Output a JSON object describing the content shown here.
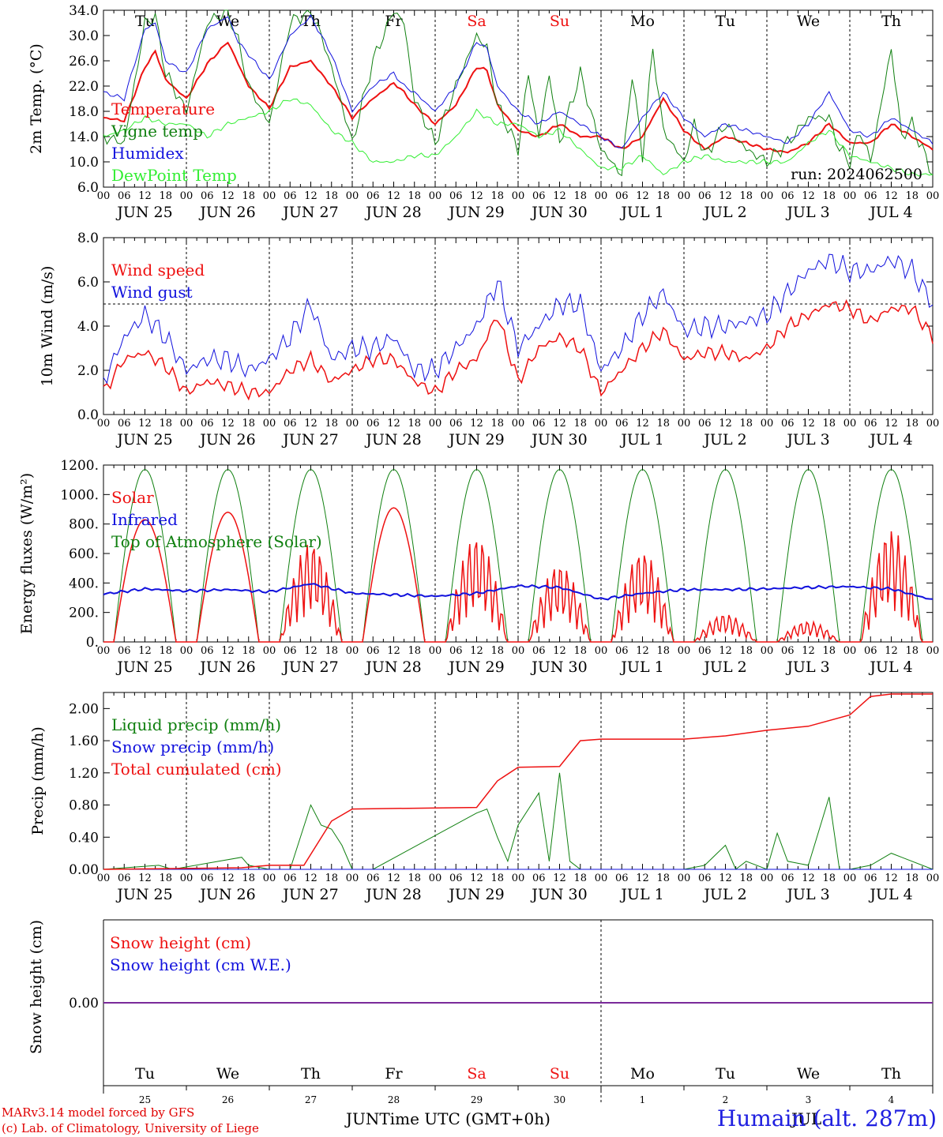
{
  "run_label": "run: 2024062500",
  "days": [
    {
      "label": "Tu",
      "color": "#000000",
      "month_day": "JUN 25",
      "num": "25"
    },
    {
      "label": "We",
      "color": "#000000",
      "month_day": "JUN 26",
      "num": "26"
    },
    {
      "label": "Th",
      "color": "#000000",
      "month_day": "JUN 27",
      "num": "27"
    },
    {
      "label": "Fr",
      "color": "#000000",
      "month_day": "JUN 28",
      "num": "28"
    },
    {
      "label": "Sa",
      "color": "#ee1111",
      "month_day": "JUN 29",
      "num": "29"
    },
    {
      "label": "Su",
      "color": "#ee1111",
      "month_day": "JUN 30",
      "num": "30"
    },
    {
      "label": "Mo",
      "color": "#000000",
      "month_day": "JUL  1",
      "num": "1"
    },
    {
      "label": "Tu",
      "color": "#000000",
      "month_day": "JUL  2",
      "num": "2"
    },
    {
      "label": "We",
      "color": "#000000",
      "month_day": "JUL  3",
      "num": "3"
    },
    {
      "label": "Th",
      "color": "#000000",
      "month_day": "JUL  4",
      "num": "4"
    }
  ],
  "hour_ticks": [
    "00",
    "06",
    "12",
    "18"
  ],
  "footer": {
    "model": "MARv3.14 model forced by GFS",
    "lab": "(c) Lab. of Climatology, University of Liege",
    "xlabel": "JUNTime UTC (GMT+0h)",
    "month_jul": "JUL",
    "station": "Humain (alt. 287m)"
  },
  "chart_data": [
    {
      "type": "line",
      "ylabel": "2m Temp. (°C)",
      "ylim": [
        6.0,
        34.0
      ],
      "yticks": [
        "6.0",
        "10.0",
        "14.0",
        "18.0",
        "22.0",
        "26.0",
        "30.0",
        "34.0"
      ],
      "x_unit": "hours since 2024-06-25 00 UTC",
      "series": [
        {
          "name": "Temperature",
          "color": "#ee1111",
          "x": [
            0,
            6,
            12,
            15,
            18,
            24,
            30,
            36,
            39,
            42,
            48,
            54,
            60,
            66,
            72,
            78,
            84,
            87,
            90,
            96,
            102,
            108,
            111,
            114,
            120,
            126,
            132,
            138,
            144,
            150,
            156,
            162,
            168,
            174,
            180,
            186,
            192,
            198,
            204,
            210,
            216,
            222,
            228,
            234,
            240
          ],
          "y": [
            17,
            16.5,
            25,
            27.5,
            23,
            20,
            25.5,
            29,
            25.5,
            22,
            18.5,
            25,
            26,
            22,
            17,
            20,
            22.5,
            21,
            19,
            16,
            19,
            25,
            24.5,
            19,
            15,
            14,
            16,
            14,
            14,
            12,
            14,
            20,
            15,
            12,
            14,
            13,
            12,
            11.5,
            13,
            16,
            13,
            13,
            16,
            14,
            12
          ]
        },
        {
          "name": "Vigne temp",
          "color": "#108010",
          "x": [
            0,
            6,
            12,
            15,
            18,
            24,
            30,
            36,
            39,
            42,
            48,
            54,
            60,
            63,
            66,
            72,
            78,
            84,
            87,
            90,
            96,
            102,
            108,
            111,
            114,
            120,
            123,
            126,
            129,
            132,
            138,
            144,
            150,
            153,
            156,
            159,
            162,
            168,
            171,
            174,
            180,
            186,
            192,
            198,
            204,
            210,
            213,
            216,
            219,
            222,
            228,
            231,
            234,
            240
          ],
          "y": [
            14,
            13,
            32,
            33,
            24,
            18,
            32,
            34,
            29,
            22,
            16,
            32,
            34,
            30,
            25,
            13,
            26,
            34,
            32,
            20,
            13,
            22,
            30,
            28,
            19,
            12,
            24,
            14,
            24,
            13,
            24,
            12,
            8,
            24,
            11,
            28,
            15,
            10,
            16,
            11,
            16,
            12,
            10,
            13,
            17,
            17,
            12,
            10,
            15,
            10,
            28,
            14,
            16,
            8
          ]
        },
        {
          "name": "Humidex",
          "color": "#1111dd",
          "x": [
            0,
            6,
            12,
            15,
            18,
            24,
            30,
            36,
            39,
            42,
            48,
            54,
            60,
            66,
            72,
            78,
            84,
            87,
            90,
            96,
            102,
            108,
            111,
            114,
            120,
            126,
            132,
            138,
            144,
            150,
            156,
            162,
            168,
            174,
            180,
            186,
            192,
            198,
            204,
            210,
            216,
            222,
            228,
            234,
            240
          ],
          "y": [
            21,
            20,
            31,
            32,
            26,
            24,
            31,
            33,
            29,
            27,
            23,
            30,
            33,
            27,
            18,
            22,
            24,
            22,
            21,
            18,
            22,
            29,
            28,
            22,
            18,
            16,
            18,
            16,
            14,
            12,
            17,
            21,
            17,
            14,
            16,
            15,
            14,
            13,
            16,
            21,
            15,
            14,
            17,
            15,
            13
          ]
        },
        {
          "name": "DewPoint Temp",
          "color": "#33ee33",
          "x": [
            0,
            6,
            12,
            18,
            24,
            30,
            36,
            42,
            48,
            54,
            60,
            66,
            72,
            78,
            84,
            90,
            96,
            102,
            108,
            114,
            120,
            126,
            132,
            138,
            144,
            150,
            156,
            162,
            168,
            174,
            180,
            186,
            192,
            198,
            204,
            210,
            216,
            222,
            228,
            234,
            240
          ],
          "y": [
            14,
            15,
            17,
            16,
            16,
            14,
            16,
            17,
            18,
            20,
            19,
            15,
            13,
            10,
            10,
            11,
            11,
            14,
            18,
            16,
            16,
            14,
            15,
            12,
            9,
            9,
            11,
            8,
            10,
            11,
            10,
            10,
            10,
            10,
            13,
            15,
            11,
            10,
            9,
            8,
            8
          ]
        }
      ]
    },
    {
      "type": "line",
      "ylabel": "10m Wind (m/s)",
      "ylim": [
        0.0,
        8.0
      ],
      "yticks": [
        "0.0",
        "2.0",
        "4.0",
        "6.0",
        "8.0"
      ],
      "reference_line": 5.0,
      "series": [
        {
          "name": "Wind speed",
          "color": "#ee1111",
          "x": [
            0,
            6,
            12,
            18,
            24,
            30,
            36,
            42,
            48,
            54,
            60,
            66,
            72,
            78,
            84,
            90,
            96,
            102,
            108,
            114,
            120,
            126,
            132,
            138,
            144,
            150,
            156,
            162,
            168,
            174,
            180,
            186,
            192,
            198,
            204,
            210,
            216,
            222,
            228,
            234,
            240
          ],
          "y": [
            1,
            2.5,
            2.8,
            2.2,
            1,
            1.5,
            1.3,
            1,
            1,
            2,
            2.5,
            1.5,
            2,
            2.5,
            2.5,
            1.5,
            1,
            2,
            2.5,
            4.5,
            1.5,
            3,
            3.5,
            3,
            1,
            2,
            3,
            3.8,
            2.5,
            2.8,
            2.8,
            2.5,
            3,
            4,
            4.5,
            5,
            4.8,
            4.2,
            4.8,
            4.8,
            3.5
          ]
        },
        {
          "name": "Wind gust",
          "color": "#1111dd",
          "x": [
            0,
            6,
            12,
            18,
            24,
            30,
            36,
            42,
            48,
            54,
            60,
            66,
            72,
            78,
            84,
            90,
            96,
            102,
            108,
            114,
            120,
            126,
            132,
            138,
            144,
            150,
            156,
            162,
            168,
            174,
            180,
            186,
            192,
            198,
            204,
            210,
            216,
            222,
            228,
            234,
            240
          ],
          "y": [
            1.5,
            3.5,
            4.5,
            3.5,
            2,
            2.5,
            2.5,
            2,
            2.5,
            3.5,
            5,
            2.5,
            3,
            3,
            3.5,
            2,
            2,
            3,
            4,
            6,
            3,
            4,
            5,
            5,
            2,
            3,
            4.5,
            5.5,
            3.8,
            4,
            4,
            4.2,
            4.5,
            5.5,
            6.5,
            7,
            6.5,
            6.5,
            7,
            6.5,
            5
          ]
        }
      ]
    },
    {
      "type": "line",
      "ylabel": "Energy fluxes (W/m²)",
      "ylim": [
        0,
        1200
      ],
      "yticks": [
        "0.",
        "200.",
        "400.",
        "600.",
        "800.",
        "1000.",
        "1200."
      ],
      "series": [
        {
          "name": "Solar",
          "color": "#ee1111",
          "daily_peak": [
            830,
            880,
            680,
            910,
            720,
            530,
            620,
            190,
            140,
            770
          ]
        },
        {
          "name": "Infrared",
          "color": "#1111dd",
          "x": [
            0,
            12,
            24,
            36,
            48,
            60,
            72,
            84,
            96,
            108,
            120,
            132,
            144,
            156,
            168,
            180,
            192,
            204,
            216,
            228,
            240
          ],
          "y": [
            325,
            360,
            345,
            355,
            340,
            395,
            330,
            320,
            310,
            330,
            380,
            370,
            290,
            330,
            355,
            355,
            360,
            370,
            375,
            360,
            285
          ]
        },
        {
          "name": "Top of Atmosphere (Solar)",
          "color": "#108010",
          "daily_peak": [
            1170,
            1170,
            1170,
            1170,
            1170,
            1170,
            1170,
            1170,
            1170,
            1170
          ]
        }
      ]
    },
    {
      "type": "line",
      "ylabel": "Precip (mm/h)",
      "ylim": [
        0.0,
        2.2
      ],
      "yticks": [
        "0.00",
        "0.40",
        "0.80",
        "1.20",
        "1.60",
        "2.00"
      ],
      "series": [
        {
          "name": "Liquid precip (mm/h)",
          "color": "#108010",
          "x": [
            0,
            16,
            20,
            40,
            42,
            48,
            54,
            60,
            63,
            66,
            69,
            72,
            78,
            108,
            111,
            114,
            117,
            120,
            126,
            129,
            132,
            135,
            138,
            144,
            168,
            174,
            180,
            183,
            186,
            192,
            195,
            198,
            204,
            210,
            213,
            216,
            222,
            228,
            240
          ],
          "y": [
            0,
            0.05,
            0,
            0.15,
            0.05,
            0,
            0,
            0.8,
            0.55,
            0.5,
            0.3,
            0,
            0,
            0.7,
            0.75,
            0.4,
            0.1,
            0.55,
            0.95,
            0.1,
            1.2,
            0.1,
            0,
            0,
            0,
            0.05,
            0.3,
            0,
            0.1,
            0,
            0.45,
            0.1,
            0.05,
            0.9,
            0,
            0,
            0.05,
            0.2,
            0
          ]
        },
        {
          "name": "Snow precip (mm/h)",
          "color": "#1111dd",
          "x": [
            0,
            240
          ],
          "y": [
            0,
            0
          ]
        },
        {
          "name": "Total cumulated (cm)",
          "color": "#ee1111",
          "x": [
            0,
            40,
            48,
            58,
            66,
            72,
            108,
            114,
            120,
            132,
            138,
            144,
            168,
            180,
            192,
            204,
            216,
            222,
            228,
            240
          ],
          "y": [
            0,
            0.02,
            0.05,
            0.05,
            0.6,
            0.75,
            0.77,
            1.1,
            1.27,
            1.28,
            1.6,
            1.62,
            1.62,
            1.66,
            1.73,
            1.78,
            1.92,
            2.15,
            2.18,
            2.18
          ]
        }
      ]
    },
    {
      "type": "line",
      "ylabel": "Snow height (cm)",
      "ytick": "0.00",
      "series": [
        {
          "name": "Snow height (cm)",
          "color": "#ee1111",
          "x": [
            0,
            240
          ],
          "y": [
            0,
            0
          ]
        },
        {
          "name": "Snow height (cm W.E.)",
          "color": "#1111dd",
          "x": [
            0,
            240
          ],
          "y": [
            0,
            0
          ]
        }
      ]
    }
  ]
}
